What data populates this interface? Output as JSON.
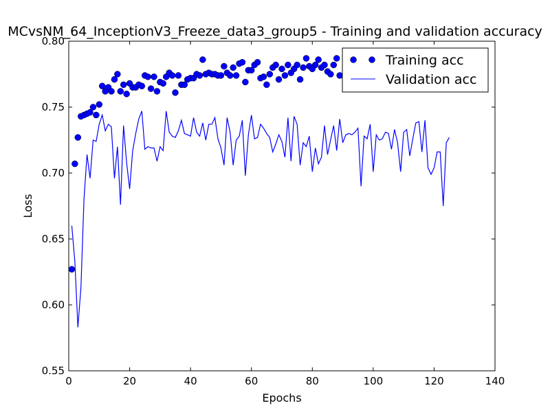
{
  "chart_data": {
    "type": "line",
    "title": "MCvsNM_64_InceptionV3_Freeze_data3_group5 - Training and validation accuracy",
    "xlabel": "Epochs",
    "ylabel": "Loss",
    "xlim": [
      0,
      140
    ],
    "ylim": [
      0.55,
      0.8
    ],
    "xticks": [
      0,
      20,
      40,
      60,
      80,
      100,
      120,
      140
    ],
    "yticks": [
      0.55,
      0.6,
      0.65,
      0.7,
      0.75,
      0.8
    ],
    "xtick_labels": [
      "0",
      "20",
      "40",
      "60",
      "80",
      "100",
      "120",
      "140"
    ],
    "ytick_labels": [
      "0.55",
      "0.60",
      "0.65",
      "0.70",
      "0.75",
      "0.80"
    ],
    "grid": false,
    "legend_position": "top-right",
    "series": [
      {
        "name": "Training acc",
        "style": "markers",
        "color": "#0000ff",
        "x": [
          1,
          2,
          3,
          4,
          5,
          6,
          7,
          8,
          9,
          10,
          11,
          12,
          13,
          14,
          15,
          16,
          17,
          18,
          19,
          20,
          21,
          22,
          23,
          24,
          25,
          26,
          27,
          28,
          29,
          30,
          31,
          32,
          33,
          34,
          35,
          36,
          37,
          38,
          39,
          40,
          41,
          42,
          43,
          44,
          45,
          46,
          47,
          48,
          49,
          50,
          51,
          52,
          53,
          54,
          55,
          56,
          57,
          58,
          59,
          60,
          61,
          62,
          63,
          64,
          65,
          66,
          67,
          68,
          69,
          70,
          71,
          72,
          73,
          74,
          75,
          76,
          77,
          78,
          79,
          80,
          81,
          82,
          83,
          84,
          85,
          86,
          87,
          88,
          89
        ],
        "values": [
          0.627,
          0.707,
          0.727,
          0.743,
          0.744,
          0.745,
          0.746,
          0.75,
          0.744,
          0.752,
          0.766,
          0.762,
          0.765,
          0.762,
          0.771,
          0.775,
          0.762,
          0.767,
          0.76,
          0.768,
          0.765,
          0.765,
          0.767,
          0.766,
          0.774,
          0.773,
          0.764,
          0.773,
          0.762,
          0.769,
          0.768,
          0.773,
          0.776,
          0.774,
          0.761,
          0.774,
          0.767,
          0.767,
          0.771,
          0.772,
          0.772,
          0.775,
          0.774,
          0.786,
          0.775,
          0.776,
          0.775,
          0.775,
          0.774,
          0.774,
          0.781,
          0.776,
          0.774,
          0.78,
          0.774,
          0.783,
          0.784,
          0.769,
          0.778,
          0.778,
          0.782,
          0.784,
          0.772,
          0.773,
          0.767,
          0.775,
          0.78,
          0.782,
          0.771,
          0.779,
          0.774,
          0.782,
          0.776,
          0.779,
          0.782,
          0.771,
          0.78,
          0.787,
          0.781,
          0.779,
          0.782,
          0.786,
          0.78,
          0.782,
          0.777,
          0.775,
          0.782,
          0.787,
          0.774
        ]
      },
      {
        "name": "Validation acc",
        "style": "line",
        "color": "#0000ff",
        "x": [
          1,
          2,
          3,
          4,
          5,
          6,
          7,
          8,
          9,
          10,
          11,
          12,
          13,
          14,
          15,
          16,
          17,
          18,
          19,
          20,
          21,
          22,
          23,
          24,
          25,
          26,
          27,
          28,
          29,
          30,
          31,
          32,
          33,
          34,
          35,
          36,
          37,
          38,
          39,
          40,
          41,
          42,
          43,
          44,
          45,
          46,
          47,
          48,
          49,
          50,
          51,
          52,
          53,
          54,
          55,
          56,
          57,
          58,
          59,
          60,
          61,
          62,
          63,
          64,
          65,
          66,
          67,
          68,
          69,
          70,
          71,
          72,
          73,
          74,
          75,
          76,
          77,
          78,
          79,
          80,
          81,
          82,
          83,
          84,
          85,
          86,
          87,
          88,
          89,
          90,
          91,
          92,
          93,
          94,
          95,
          96,
          97,
          98,
          99,
          100,
          101,
          102,
          103,
          104,
          105,
          106,
          107,
          108,
          109,
          110,
          111,
          112,
          113,
          114,
          115,
          116,
          117,
          118,
          119,
          120,
          121,
          122,
          123,
          124,
          125
        ],
        "values": [
          0.66,
          0.633,
          0.583,
          0.613,
          0.68,
          0.714,
          0.696,
          0.725,
          0.724,
          0.737,
          0.744,
          0.732,
          0.737,
          0.735,
          0.696,
          0.72,
          0.676,
          0.736,
          0.708,
          0.688,
          0.717,
          0.73,
          0.741,
          0.747,
          0.718,
          0.72,
          0.719,
          0.719,
          0.709,
          0.72,
          0.717,
          0.747,
          0.731,
          0.728,
          0.727,
          0.732,
          0.74,
          0.73,
          0.729,
          0.728,
          0.742,
          0.731,
          0.728,
          0.738,
          0.725,
          0.737,
          0.737,
          0.742,
          0.726,
          0.719,
          0.706,
          0.742,
          0.731,
          0.706,
          0.725,
          0.728,
          0.74,
          0.698,
          0.729,
          0.744,
          0.726,
          0.727,
          0.737,
          0.734,
          0.73,
          0.727,
          0.716,
          0.722,
          0.729,
          0.724,
          0.712,
          0.742,
          0.709,
          0.743,
          0.737,
          0.706,
          0.723,
          0.72,
          0.728,
          0.701,
          0.719,
          0.707,
          0.712,
          0.736,
          0.714,
          0.725,
          0.736,
          0.717,
          0.741,
          0.723,
          0.729,
          0.73,
          0.729,
          0.731,
          0.734,
          0.69,
          0.728,
          0.726,
          0.737,
          0.701,
          0.729,
          0.725,
          0.726,
          0.731,
          0.73,
          0.718,
          0.733,
          0.723,
          0.701,
          0.731,
          0.733,
          0.713,
          0.726,
          0.738,
          0.739,
          0.716,
          0.74,
          0.704,
          0.699,
          0.704,
          0.716,
          0.716,
          0.675,
          0.723,
          0.727
        ]
      }
    ]
  }
}
